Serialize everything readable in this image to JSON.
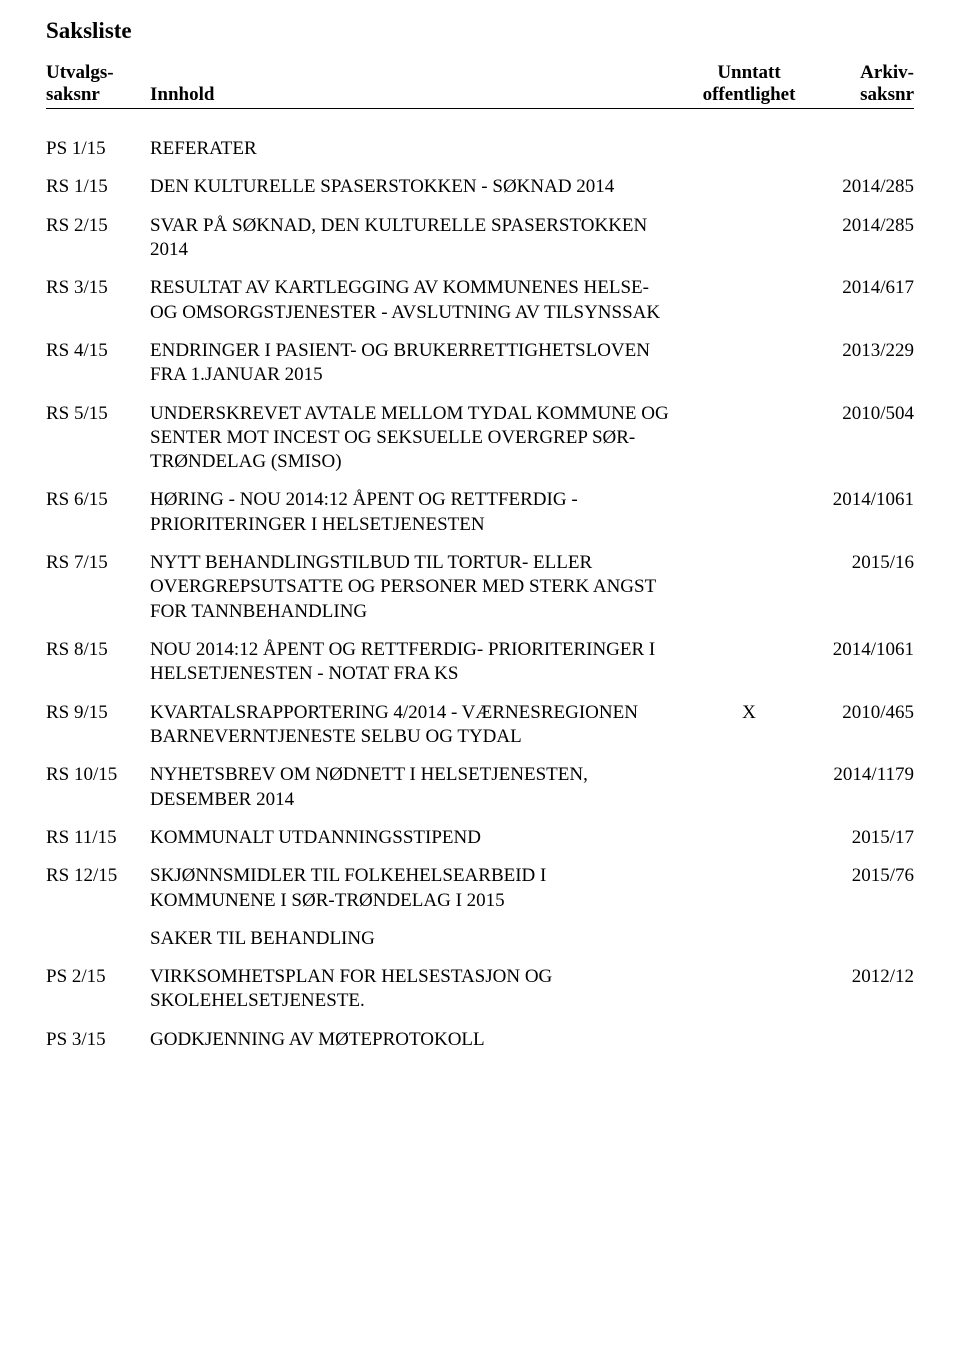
{
  "title": "Saksliste",
  "headers": {
    "saksnr_line1": "Utvalgs-",
    "saksnr_line2": "saksnr",
    "innhold": "Innhold",
    "unntatt_line1": "Unntatt",
    "unntatt_line2": "offentlighet",
    "arkiv_line1": "Arkiv-",
    "arkiv_line2": "saksnr"
  },
  "rows": [
    {
      "saksnr": "PS 1/15",
      "innhold": "REFERATER",
      "unntatt": "",
      "arkiv": ""
    },
    {
      "saksnr": "RS 1/15",
      "innhold": "DEN KULTURELLE SPASERSTOKKEN - SØKNAD 2014",
      "unntatt": "",
      "arkiv": "2014/285"
    },
    {
      "saksnr": "RS 2/15",
      "innhold": "SVAR PÅ SØKNAD, DEN KULTURELLE SPASERSTOKKEN 2014",
      "unntatt": "",
      "arkiv": "2014/285"
    },
    {
      "saksnr": "RS 3/15",
      "innhold": "RESULTAT AV KARTLEGGING AV KOMMUNENES HELSE-OG OMSORGSTJENESTER - AVSLUTNING AV TILSYNSSAK",
      "unntatt": "",
      "arkiv": "2014/617"
    },
    {
      "saksnr": "RS 4/15",
      "innhold": "ENDRINGER I PASIENT- OG BRUKERRETTIGHETSLOVEN FRA 1.JANUAR 2015",
      "unntatt": "",
      "arkiv": "2013/229"
    },
    {
      "saksnr": "RS 5/15",
      "innhold": "UNDERSKREVET AVTALE MELLOM TYDAL KOMMUNE OG SENTER MOT INCEST OG SEKSUELLE OVERGREP SØR-TRØNDELAG (SMISO)",
      "unntatt": "",
      "arkiv": "2010/504"
    },
    {
      "saksnr": "RS 6/15",
      "innhold": "HØRING - NOU 2014:12 ÅPENT OG RETTFERDIG - PRIORITERINGER I HELSETJENESTEN",
      "unntatt": "",
      "arkiv": "2014/1061"
    },
    {
      "saksnr": "RS 7/15",
      "innhold": "NYTT BEHANDLINGSTILBUD TIL TORTUR- ELLER OVERGREPSUTSATTE OG PERSONER MED STERK ANGST FOR TANNBEHANDLING",
      "unntatt": "",
      "arkiv": "2015/16"
    },
    {
      "saksnr": "RS 8/15",
      "innhold": "NOU 2014:12 ÅPENT OG RETTFERDIG- PRIORITERINGER I HELSETJENESTEN - NOTAT FRA KS",
      "unntatt": "",
      "arkiv": "2014/1061"
    },
    {
      "saksnr": "RS 9/15",
      "innhold": "KVARTALSRAPPORTERING 4/2014 - VÆRNESREGIONEN BARNEVERNTJENESTE SELBU OG TYDAL",
      "unntatt": "X",
      "arkiv": "2010/465"
    },
    {
      "saksnr": "RS 10/15",
      "innhold": "NYHETSBREV OM NØDNETT I HELSETJENESTEN, DESEMBER 2014",
      "unntatt": "",
      "arkiv": "2014/1179"
    },
    {
      "saksnr": "RS 11/15",
      "innhold": "KOMMUNALT UTDANNINGSSTIPEND",
      "unntatt": "",
      "arkiv": "2015/17"
    },
    {
      "saksnr": "RS 12/15",
      "innhold": "SKJØNNSMIDLER TIL FOLKEHELSEARBEID I KOMMUNENE I SØR-TRØNDELAG  I 2015",
      "unntatt": "",
      "arkiv": "2015/76"
    },
    {
      "saksnr": "",
      "innhold": "SAKER TIL BEHANDLING",
      "unntatt": "",
      "arkiv": "",
      "section": true
    },
    {
      "saksnr": "PS 2/15",
      "innhold": "VIRKSOMHETSPLAN FOR HELSESTASJON OG SKOLEHELSETJENESTE.",
      "unntatt": "",
      "arkiv": "2012/12"
    },
    {
      "saksnr": "PS 3/15",
      "innhold": "GODKJENNING AV MØTEPROTOKOLL",
      "unntatt": "",
      "arkiv": ""
    }
  ]
}
